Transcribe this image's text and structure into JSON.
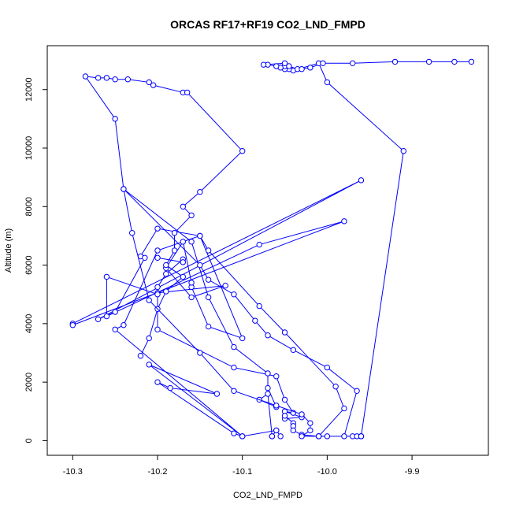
{
  "chart_data": {
    "type": "line",
    "title": "ORCAS RF17+RF19 CO2_LND_FMPD",
    "xlabel": "CO2_LND_FMPD",
    "ylabel": "Altitude (m)",
    "xlim": [
      -10.33,
      -9.81
    ],
    "ylim": [
      -500,
      13500
    ],
    "xticks": [
      -10.3,
      -10.2,
      -10.1,
      -10.0,
      -9.9
    ],
    "xtick_labels": [
      "-10.3",
      "-10.2",
      "-10.1",
      "-10.0",
      "-9.9"
    ],
    "yticks": [
      0,
      2000,
      4000,
      6000,
      8000,
      10000,
      12000
    ],
    "ytick_labels": [
      "0",
      "2000",
      "4000",
      "6000",
      "8000",
      "10000",
      "12000"
    ],
    "color": "#0000ff",
    "grid": false,
    "series": [
      {
        "points": [
          [
            -10.065,
            150
          ],
          [
            -10.06,
            350
          ],
          [
            -10.055,
            150
          ],
          [
            -10.06,
            350
          ],
          [
            -10.1,
            150
          ],
          [
            -10.11,
            250
          ],
          [
            -10.2,
            2000
          ],
          [
            -10.185,
            1800
          ],
          [
            -10.13,
            1600
          ],
          [
            -10.21,
            2600
          ],
          [
            -10.1,
            150
          ],
          [
            -10.25,
            3800
          ],
          [
            -10.24,
            3950
          ],
          [
            -10.2,
            6500
          ],
          [
            -10.15,
            7000
          ],
          [
            -10.1,
            3500
          ],
          [
            -10.14,
            3900
          ],
          [
            -10.16,
            5250
          ],
          [
            -10.16,
            5400
          ],
          [
            -10.17,
            6800
          ],
          [
            -10.19,
            5900
          ],
          [
            -10.16,
            4900
          ],
          [
            -10.12,
            5300
          ],
          [
            -10.2,
            5050
          ],
          [
            -10.2,
            3800
          ],
          [
            -10.11,
            2500
          ],
          [
            -10.06,
            2200
          ],
          [
            -10.05,
            1400
          ],
          [
            -10.04,
            950
          ],
          [
            -10.05,
            1000
          ],
          [
            -10.03,
            800
          ],
          [
            -10.05,
            750
          ],
          [
            -10.05,
            850
          ],
          [
            -10.04,
            600
          ],
          [
            -10.04,
            500
          ],
          [
            -10.04,
            350
          ],
          [
            -10.03,
            200
          ],
          [
            -10.01,
            150
          ],
          [
            -10.01,
            150
          ],
          [
            -10.01,
            150
          ],
          [
            -9.98,
            1100
          ],
          [
            -9.99,
            1850
          ],
          [
            -10.05,
            3700
          ],
          [
            -10.08,
            4600
          ],
          [
            -10.14,
            6500
          ],
          [
            -10.15,
            7000
          ],
          [
            -10.2,
            7250
          ],
          [
            -10.22,
            6300
          ],
          [
            -10.215,
            6250
          ],
          [
            -10.25,
            4400
          ],
          [
            -10.27,
            4150
          ],
          [
            -9.96,
            8900
          ],
          [
            -10.3,
            4000
          ],
          [
            -10.3,
            3950
          ],
          [
            -9.98,
            7500
          ],
          [
            -10.08,
            6700
          ],
          [
            -10.26,
            4250
          ],
          [
            -10.26,
            5600
          ],
          [
            -10.2,
            5000
          ],
          [
            -10.2,
            5250
          ],
          [
            -10.19,
            5700
          ],
          [
            -10.17,
            6200
          ],
          [
            -10.17,
            6100
          ],
          [
            -10.2,
            6250
          ]
        ]
      },
      {
        "points": [
          [
            -10.065,
            150
          ],
          [
            -10.07,
            1600
          ],
          [
            -10.08,
            1400
          ],
          [
            -10.06,
            1150
          ],
          [
            -10.07,
            1800
          ],
          [
            -10.07,
            2300
          ],
          [
            -10.11,
            3200
          ],
          [
            -10.14,
            4900
          ],
          [
            -10.16,
            6800
          ],
          [
            -10.24,
            8600
          ],
          [
            -10.25,
            11000
          ],
          [
            -10.285,
            12450
          ],
          [
            -10.27,
            12400
          ],
          [
            -10.26,
            12400
          ],
          [
            -10.25,
            12350
          ],
          [
            -10.235,
            12350
          ],
          [
            -10.21,
            12250
          ],
          [
            -10.205,
            12150
          ],
          [
            -10.17,
            11900
          ],
          [
            -10.165,
            11900
          ],
          [
            -10.1,
            9900
          ],
          [
            -10.15,
            8500
          ],
          [
            -10.17,
            8000
          ],
          [
            -10.16,
            7700
          ],
          [
            -10.18,
            7100
          ],
          [
            -10.18,
            6500
          ],
          [
            -10.19,
            6000
          ],
          [
            -10.17,
            5600
          ],
          [
            -10.19,
            5100
          ],
          [
            -10.2,
            4500
          ],
          [
            -10.21,
            3500
          ],
          [
            -10.22,
            2900
          ]
        ]
      },
      {
        "points": [
          [
            -9.96,
            150
          ],
          [
            -9.96,
            150
          ],
          [
            -9.97,
            150
          ],
          [
            -9.98,
            150
          ],
          [
            -9.965,
            1700
          ],
          [
            -10.0,
            2500
          ],
          [
            -10.04,
            3100
          ],
          [
            -10.07,
            3600
          ],
          [
            -10.085,
            4100
          ],
          [
            -10.11,
            5000
          ],
          [
            -10.14,
            5500
          ],
          [
            -10.15,
            6000
          ],
          [
            -10.24,
            8600
          ],
          [
            -10.23,
            7100
          ],
          [
            -10.21,
            4800
          ],
          [
            -10.15,
            3000
          ],
          [
            -10.11,
            1700
          ],
          [
            -10.06,
            1200
          ],
          [
            -10.03,
            900
          ],
          [
            -10.02,
            600
          ],
          [
            -10.02,
            350
          ],
          [
            -10.03,
            150
          ],
          [
            -10.01,
            150
          ],
          [
            -10.0,
            150
          ],
          [
            -9.965,
            150
          ],
          [
            -9.96,
            150
          ],
          [
            -9.96,
            150
          ],
          [
            -9.91,
            9900
          ],
          [
            -10.0,
            12250
          ],
          [
            -10.01,
            12900
          ],
          [
            -10.04,
            12650
          ],
          [
            -10.045,
            12700
          ],
          [
            -10.05,
            12700
          ],
          [
            -10.05,
            12800
          ],
          [
            -10.055,
            12750
          ],
          [
            -10.06,
            12800
          ],
          [
            -10.07,
            12850
          ],
          [
            -10.075,
            12850
          ],
          [
            -10.05,
            12900
          ],
          [
            -10.045,
            12800
          ],
          [
            -10.035,
            12700
          ],
          [
            -10.03,
            12700
          ],
          [
            -10.02,
            12750
          ],
          [
            -10.005,
            12900
          ],
          [
            -9.97,
            12900
          ],
          [
            -9.92,
            12950
          ],
          [
            -9.88,
            12950
          ],
          [
            -9.85,
            12950
          ],
          [
            -9.83,
            12950
          ]
        ]
      }
    ]
  }
}
